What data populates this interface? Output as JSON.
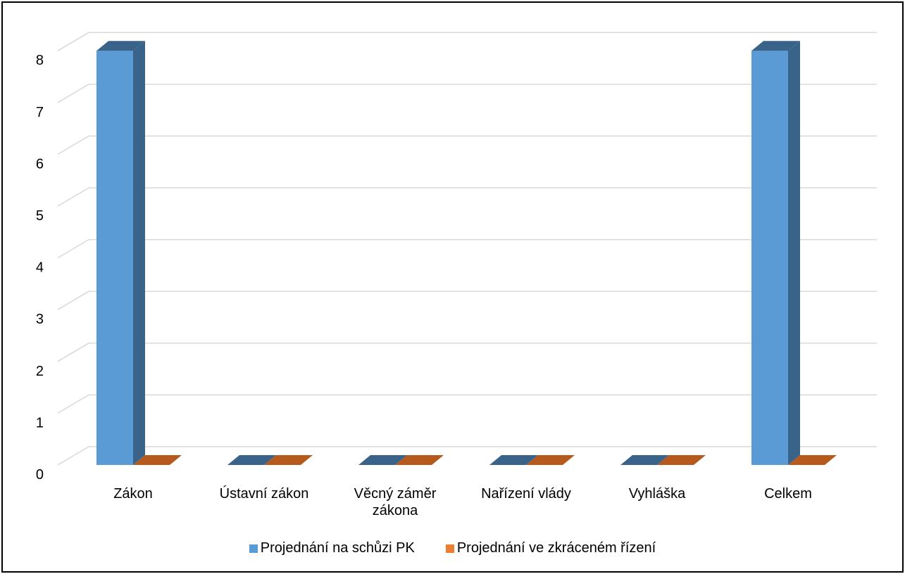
{
  "chart_data": {
    "type": "bar",
    "categories": [
      "Zákon",
      "Ústavní zákon",
      "Věcný záměr|zákona",
      "Nařízení vlády",
      "Vyhláška",
      "Celkem"
    ],
    "series": [
      {
        "name": "Projednání na schůzi PK",
        "values": [
          8,
          0,
          0,
          0,
          0,
          8
        ],
        "color": "#5B9BD5",
        "side_color": "#3A6389"
      },
      {
        "name": "Projednání ve zkráceném řízení",
        "values": [
          0,
          0,
          0,
          0,
          0,
          0
        ],
        "color": "#ED7D31",
        "side_color": "#B55A1C"
      }
    ],
    "y_ticks": [
      "0",
      "1",
      "2",
      "3",
      "4",
      "5",
      "6",
      "7",
      "8"
    ],
    "ylim": [
      0,
      8
    ],
    "grid": true,
    "legend_position": "bottom",
    "title": "",
    "xlabel": "",
    "ylabel": ""
  }
}
